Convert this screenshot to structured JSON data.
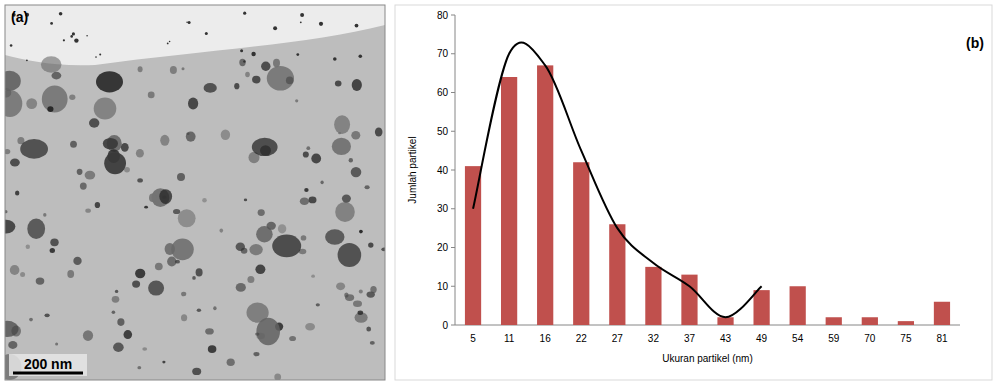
{
  "image_panel": {
    "label": "(a)",
    "scale_bar": "200 nm"
  },
  "chart_data": {
    "type": "bar",
    "annotations": [
      "(b)"
    ],
    "x_label": "Ukuran partikel (nm)",
    "y_label": "Jumlah partikel",
    "categories": [
      "5",
      "11",
      "16",
      "22",
      "27",
      "32",
      "37",
      "43",
      "49",
      "54",
      "59",
      "70",
      "75",
      "81"
    ],
    "series": [
      {
        "type": "bar",
        "color": "#c0504d",
        "values": [
          41,
          64,
          67,
          42,
          26,
          15,
          13,
          2,
          9,
          10,
          2,
          2,
          1,
          6
        ]
      },
      {
        "type": "line",
        "color": "#000000",
        "line_style": "solid",
        "values": [
          30,
          70,
          67,
          45,
          25,
          16,
          10,
          2,
          10,
          null,
          null,
          null,
          null,
          null
        ]
      }
    ],
    "ylim": [
      0,
      80
    ],
    "yticks": [
      0,
      10,
      20,
      30,
      40,
      50,
      60,
      70,
      80
    ],
    "grid": false
  }
}
